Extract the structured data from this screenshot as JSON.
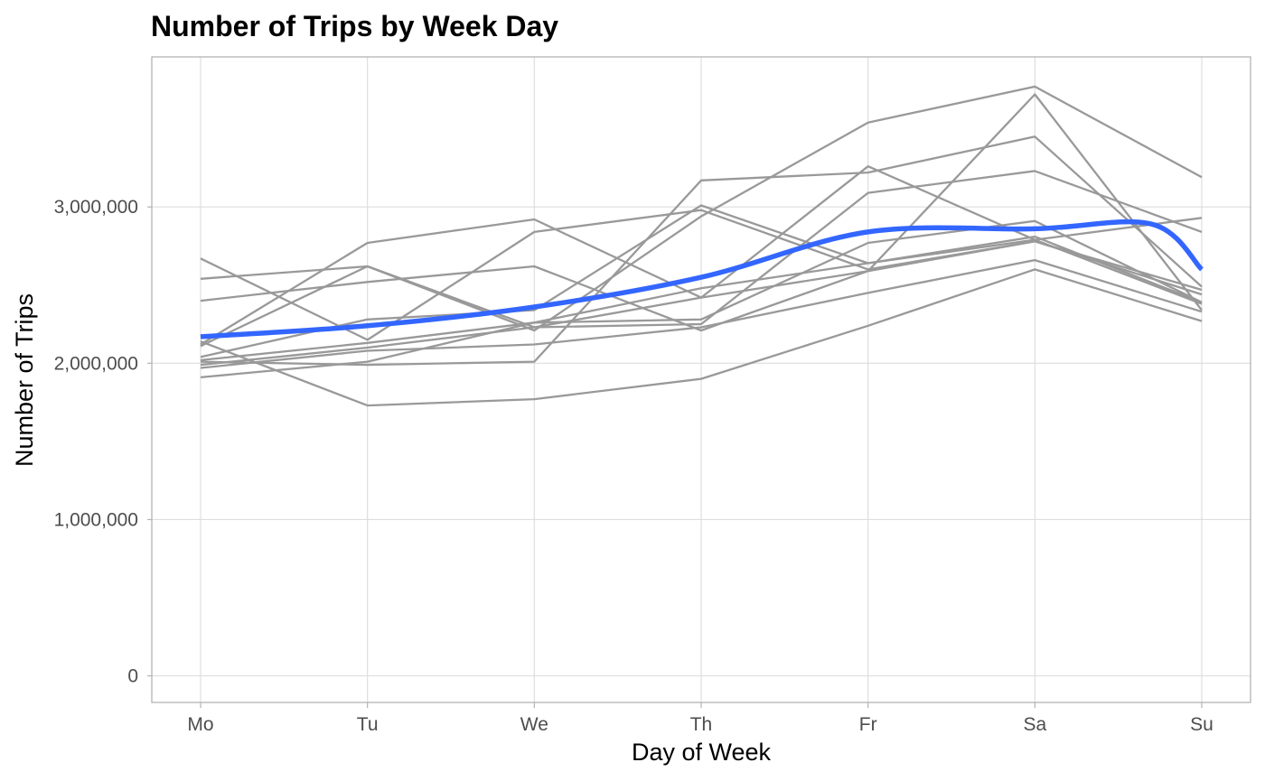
{
  "chart_data": {
    "type": "line",
    "title": "Number of Trips by Week Day",
    "xlabel": "Day of Week",
    "ylabel": "Number of Trips",
    "categories": [
      "Mo",
      "Tu",
      "We",
      "Th",
      "Fr",
      "Sa",
      "Su"
    ],
    "y_ticks": [
      0,
      1000000,
      2000000,
      3000000
    ],
    "y_tick_labels": [
      "0",
      "1,000,000",
      "2,000,000",
      "3,000,000"
    ],
    "ylim": [
      -170000,
      3960000
    ],
    "grid": true,
    "legend": "none",
    "series": [
      {
        "values": [
          2670000,
          2150000,
          2840000,
          2980000,
          2600000,
          2780000,
          2440000
        ]
      },
      {
        "values": [
          2540000,
          2620000,
          2230000,
          2250000,
          3090000,
          3230000,
          2840000
        ]
      },
      {
        "values": [
          2400000,
          2520000,
          2620000,
          2210000,
          2590000,
          3720000,
          2340000
        ]
      },
      {
        "values": [
          2120000,
          2770000,
          2920000,
          2420000,
          3260000,
          2790000,
          2380000
        ]
      },
      {
        "values": [
          2110000,
          2620000,
          2210000,
          2940000,
          3540000,
          3770000,
          3190000
        ]
      },
      {
        "values": [
          2040000,
          2280000,
          2340000,
          3010000,
          2640000,
          2810000,
          2390000
        ]
      },
      {
        "values": [
          2020000,
          2130000,
          2260000,
          2480000,
          2640000,
          2790000,
          2930000
        ]
      },
      {
        "values": [
          2010000,
          1990000,
          2010000,
          3170000,
          3220000,
          3450000,
          2490000
        ]
      },
      {
        "values": [
          1990000,
          2100000,
          2230000,
          2420000,
          2590000,
          2780000,
          2470000
        ]
      },
      {
        "values": [
          1970000,
          2080000,
          2120000,
          2230000,
          2450000,
          2660000,
          2330000
        ]
      },
      {
        "values": [
          1910000,
          2010000,
          2260000,
          2280000,
          2770000,
          2910000,
          2390000
        ]
      },
      {
        "values": [
          2140000,
          1730000,
          1770000,
          1900000,
          2240000,
          2600000,
          2270000
        ]
      }
    ],
    "smooth_trend": {
      "color": "#3366ff",
      "values": [
        2170000,
        2240000,
        2360000,
        2550000,
        2840000,
        2860000,
        2600000
      ],
      "peak": {
        "x": 5.7,
        "value": 2890000
      }
    }
  }
}
